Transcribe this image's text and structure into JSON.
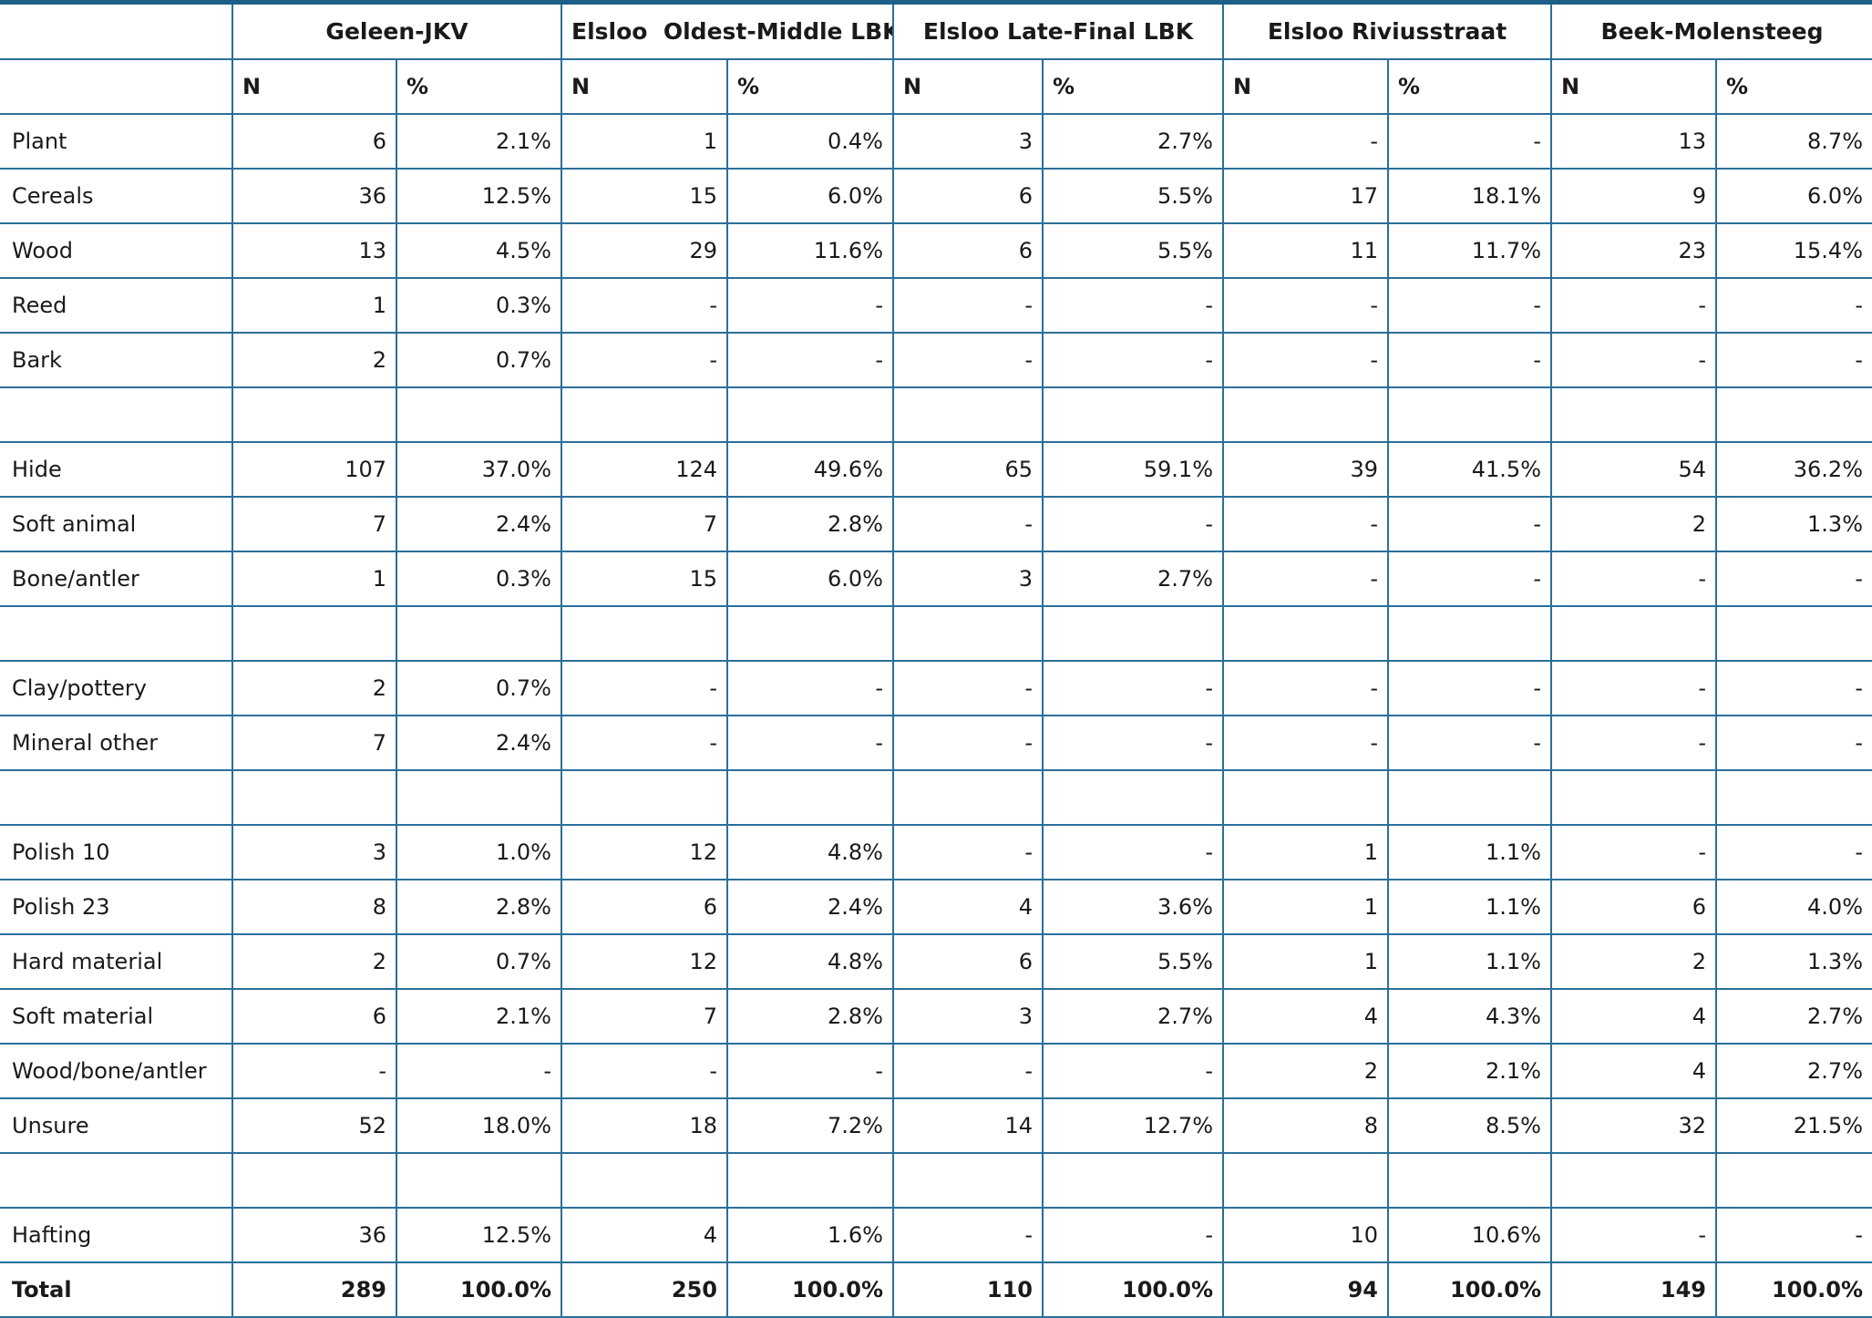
{
  "table": {
    "header": {
      "groups": [
        "Geleen-JKV",
        "Elsloo  Oldest-Middle LBK",
        "Elsloo Late-Final LBK",
        "Elsloo Riviusstraat",
        "Beek-Molensteeg"
      ],
      "sub": [
        "N",
        "%",
        "N",
        "%",
        "N",
        "%",
        "N",
        "%",
        "N",
        "%"
      ]
    },
    "rows": [
      {
        "label": "Plant",
        "cells": [
          "6",
          "2.1%",
          "1",
          "0.4%",
          "3",
          "2.7%",
          "-",
          "-",
          "13",
          "8.7%"
        ]
      },
      {
        "label": "Cereals",
        "cells": [
          "36",
          "12.5%",
          "15",
          "6.0%",
          "6",
          "5.5%",
          "17",
          "18.1%",
          "9",
          "6.0%"
        ]
      },
      {
        "label": "Wood",
        "cells": [
          "13",
          "4.5%",
          "29",
          "11.6%",
          "6",
          "5.5%",
          "11",
          "11.7%",
          "23",
          "15.4%"
        ]
      },
      {
        "label": "Reed",
        "cells": [
          "1",
          "0.3%",
          "-",
          "-",
          "-",
          "-",
          "-",
          "-",
          "-",
          "-"
        ]
      },
      {
        "label": "Bark",
        "cells": [
          "2",
          "0.7%",
          "-",
          "-",
          "-",
          "-",
          "-",
          "-",
          "-",
          "-"
        ]
      },
      null,
      {
        "label": "Hide",
        "cells": [
          "107",
          "37.0%",
          "124",
          "49.6%",
          "65",
          "59.1%",
          "39",
          "41.5%",
          "54",
          "36.2%"
        ]
      },
      {
        "label": "Soft animal",
        "cells": [
          "7",
          "2.4%",
          "7",
          "2.8%",
          "-",
          "-",
          "-",
          "-",
          "2",
          "1.3%"
        ]
      },
      {
        "label": "Bone/antler",
        "cells": [
          "1",
          "0.3%",
          "15",
          "6.0%",
          "3",
          "2.7%",
          "-",
          "-",
          "-",
          "-"
        ]
      },
      null,
      {
        "label": "Clay/pottery",
        "cells": [
          "2",
          "0.7%",
          "-",
          "-",
          "-",
          "-",
          "-",
          "-",
          "-",
          "-"
        ]
      },
      {
        "label": "Mineral other",
        "cells": [
          "7",
          "2.4%",
          "-",
          "-",
          "-",
          "-",
          "-",
          "-",
          "-",
          "-"
        ]
      },
      null,
      {
        "label": "Polish 10",
        "cells": [
          "3",
          "1.0%",
          "12",
          "4.8%",
          "-",
          "-",
          "1",
          "1.1%",
          "-",
          "-"
        ]
      },
      {
        "label": "Polish 23",
        "cells": [
          "8",
          "2.8%",
          "6",
          "2.4%",
          "4",
          "3.6%",
          "1",
          "1.1%",
          "6",
          "4.0%"
        ]
      },
      {
        "label": "Hard material",
        "cells": [
          "2",
          "0.7%",
          "12",
          "4.8%",
          "6",
          "5.5%",
          "1",
          "1.1%",
          "2",
          "1.3%"
        ]
      },
      {
        "label": "Soft material",
        "cells": [
          "6",
          "2.1%",
          "7",
          "2.8%",
          "3",
          "2.7%",
          "4",
          "4.3%",
          "4",
          "2.7%"
        ]
      },
      {
        "label": "Wood/bone/antler",
        "cells": [
          "-",
          "-",
          "-",
          "-",
          "-",
          "-",
          "2",
          "2.1%",
          "4",
          "2.7%"
        ]
      },
      {
        "label": "Unsure",
        "cells": [
          "52",
          "18.0%",
          "18",
          "7.2%",
          "14",
          "12.7%",
          "8",
          "8.5%",
          "32",
          "21.5%"
        ]
      },
      null,
      {
        "label": "Hafting",
        "cells": [
          "36",
          "12.5%",
          "4",
          "1.6%",
          "-",
          "-",
          "10",
          "10.6%",
          "-",
          "-"
        ]
      }
    ],
    "total": {
      "label": "Total",
      "cells": [
        "289",
        "100.0%",
        "250",
        "100.0%",
        "110",
        "100.0%",
        "94",
        "100.0%",
        "149",
        "100.0%"
      ]
    }
  }
}
